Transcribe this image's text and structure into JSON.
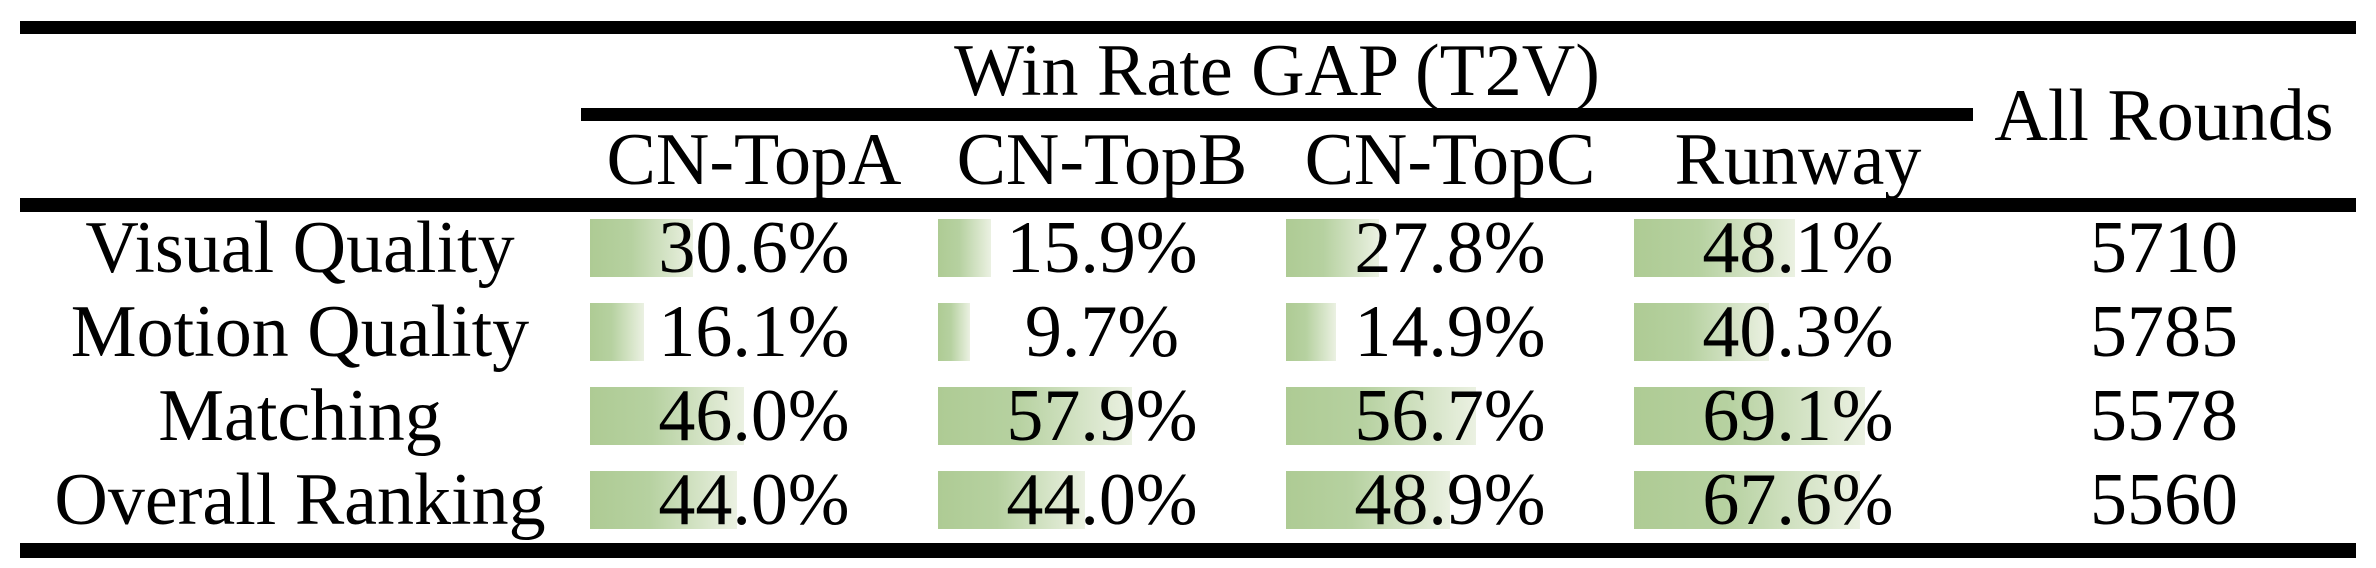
{
  "table": {
    "header": {
      "group_title": "Win Rate GAP (T2V)",
      "columns": [
        "CN-TopA",
        "CN-TopB",
        "CN-TopC",
        "Runway"
      ],
      "all_rounds": "All Rounds"
    },
    "rows": [
      {
        "label": "Visual Quality",
        "cells": [
          "30.6%",
          "15.9%",
          "27.8%",
          "48.1%"
        ],
        "all_rounds": "5710"
      },
      {
        "label": "Motion Quality",
        "cells": [
          "16.1%",
          "9.7%",
          "14.9%",
          "40.3%"
        ],
        "all_rounds": "5785"
      },
      {
        "label": "Matching",
        "cells": [
          "46.0%",
          "57.9%",
          "56.7%",
          "69.1%"
        ],
        "all_rounds": "5578"
      },
      {
        "label": "Overall Ranking",
        "cells": [
          "44.0%",
          "44.0%",
          "48.9%",
          "67.6%"
        ],
        "all_rounds": "5560"
      }
    ],
    "colors": {
      "bar_green_start": "#aecb94",
      "bar_green_end": "#ebf1e2",
      "rule_black": "#000000",
      "background": "#ffffff",
      "text": "#000000"
    }
  },
  "chart_data": {
    "type": "table",
    "title": "Win Rate GAP (T2V)",
    "columns": [
      "CN-TopA",
      "CN-TopB",
      "CN-TopC",
      "Runway",
      "All Rounds"
    ],
    "row_labels": [
      "Visual Quality",
      "Motion Quality",
      "Matching",
      "Overall Ranking"
    ],
    "series": [
      {
        "name": "Visual Quality",
        "win_rate_gap_percent": [
          30.6,
          15.9,
          27.8,
          48.1
        ],
        "all_rounds": 5710
      },
      {
        "name": "Motion Quality",
        "win_rate_gap_percent": [
          16.1,
          9.7,
          14.9,
          40.3
        ],
        "all_rounds": 5785
      },
      {
        "name": "Matching",
        "win_rate_gap_percent": [
          46.0,
          57.9,
          56.7,
          69.1
        ],
        "all_rounds": 5578
      },
      {
        "name": "Overall Ranking",
        "win_rate_gap_percent": [
          44.0,
          44.0,
          48.9,
          67.6
        ],
        "all_rounds": 5560
      }
    ],
    "layout": {
      "bar_range_percent": [
        0,
        100
      ],
      "bar_fill": "green gradient data bars inside cells, width proportional to percent"
    }
  }
}
